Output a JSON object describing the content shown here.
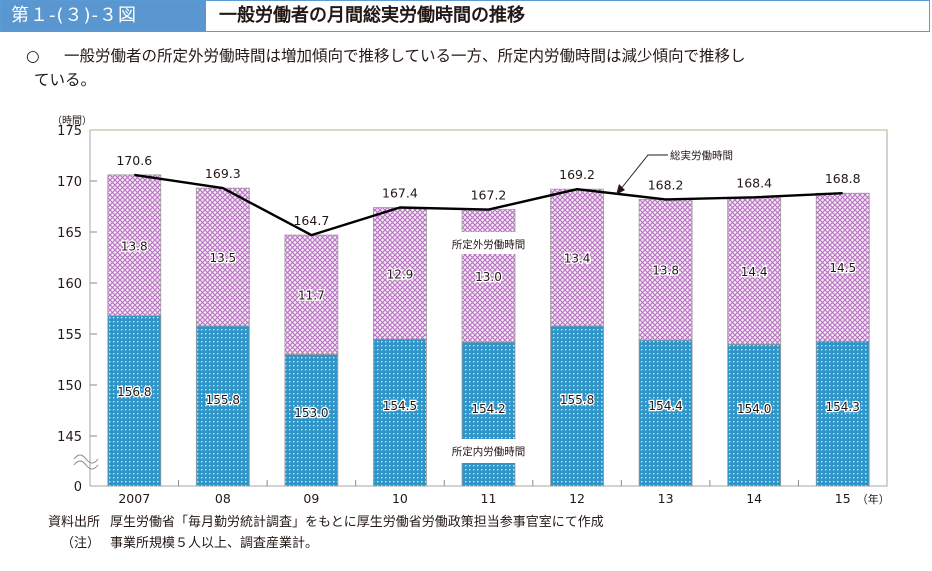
{
  "header": {
    "figure_number": "第１-(３)-３図",
    "title": "一般労働者の月間総実労働時間の推移"
  },
  "summary": {
    "bullet": "○",
    "line1": "一般労働者の所定外労働時間は増加傾向で推移している一方、所定内労働時間は減少傾向で推移し",
    "line2": "ている。"
  },
  "notes": [
    {
      "label": "資料出所",
      "text": "厚生労働省「毎月勤労統計調査」をもとに厚生労働省労働政策担当参事官室にて作成"
    },
    {
      "label": "（注）",
      "text": "事業所規模５人以上、調査産業計。"
    }
  ],
  "chart_data": {
    "type": "bar",
    "stacked": true,
    "title": "一般労働者の月間総実労働時間の推移",
    "ylabel": "（時間）",
    "xlabel": "（年）",
    "categories": [
      "2007",
      "08",
      "09",
      "10",
      "11",
      "12",
      "13",
      "14",
      "15"
    ],
    "yticks": [
      0,
      145,
      150,
      155,
      160,
      165,
      170,
      175
    ],
    "ylim": [
      145,
      175
    ],
    "axis_break": true,
    "grid": false,
    "series": [
      {
        "name": "所定内労働時間",
        "kind": "bar",
        "color": "#2e95c9",
        "values": [
          156.8,
          155.8,
          153.0,
          154.5,
          154.2,
          155.8,
          154.4,
          154.0,
          154.3
        ]
      },
      {
        "name": "所定外労働時間",
        "kind": "bar",
        "color": "#c98ad0",
        "values": [
          13.8,
          13.5,
          11.7,
          12.9,
          13.0,
          13.4,
          13.8,
          14.4,
          14.5
        ]
      },
      {
        "name": "総実労働時間",
        "kind": "line",
        "color": "#000000",
        "values": [
          170.6,
          169.3,
          164.7,
          167.4,
          167.2,
          169.2,
          168.2,
          168.4,
          168.8
        ]
      }
    ],
    "annotations": [
      {
        "text": "総実労働時間",
        "target": "line"
      },
      {
        "text": "所定外労働時間",
        "target": "bar-upper",
        "category": "11"
      },
      {
        "text": "所定内労働時間",
        "target": "bar-lower",
        "category": "11"
      }
    ]
  }
}
